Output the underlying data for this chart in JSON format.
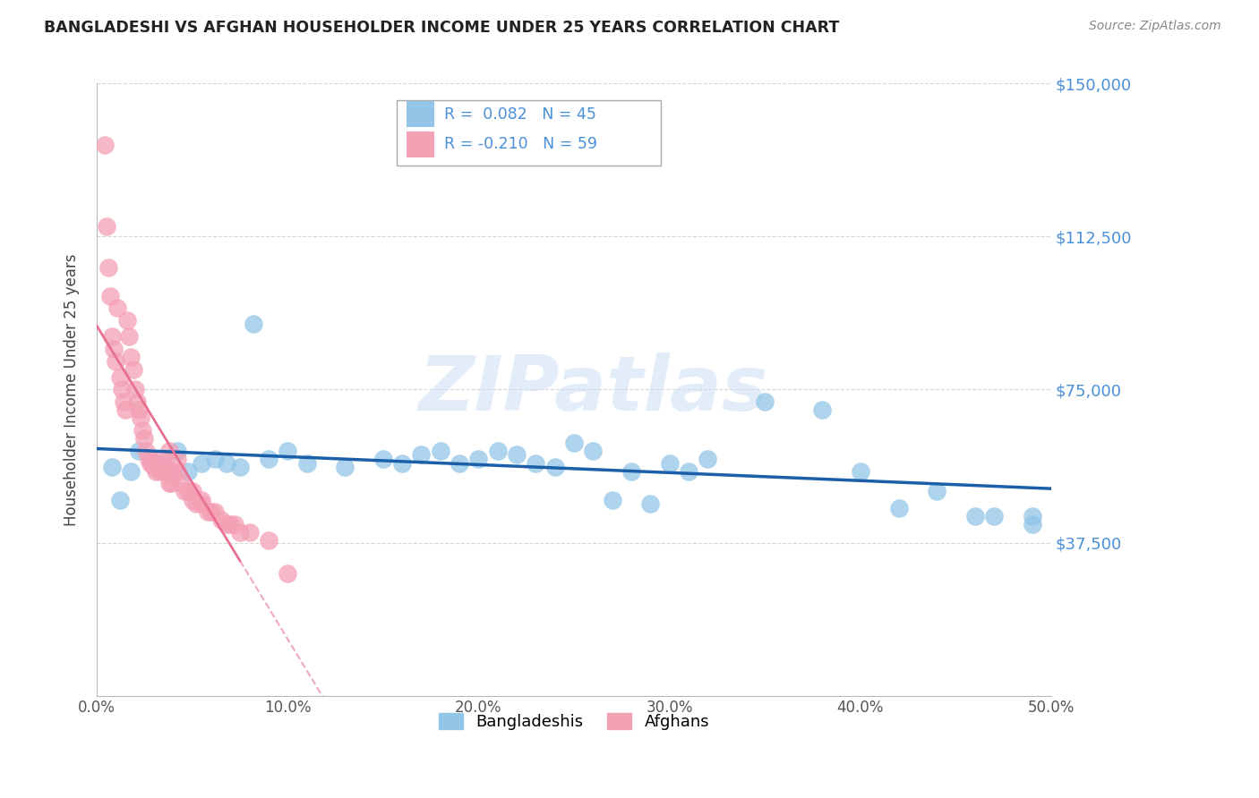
{
  "title": "BANGLADESHI VS AFGHAN HOUSEHOLDER INCOME UNDER 25 YEARS CORRELATION CHART",
  "source": "Source: ZipAtlas.com",
  "ylabel": "Householder Income Under 25 years",
  "watermark": "ZIPatlas",
  "legend_bangladeshi": "Bangladeshis",
  "legend_afghan": "Afghans",
  "R_bangladeshi": 0.082,
  "N_bangladeshi": 45,
  "R_afghan": -0.21,
  "N_afghan": 59,
  "xlim": [
    0.0,
    0.5
  ],
  "ylim": [
    0,
    150000
  ],
  "yticks": [
    0,
    37500,
    75000,
    112500,
    150000
  ],
  "ytick_labels": [
    "",
    "$37,500",
    "$75,000",
    "$112,500",
    "$150,000"
  ],
  "xtick_labels": [
    "0.0%",
    "10.0%",
    "20.0%",
    "30.0%",
    "40.0%",
    "50.0%"
  ],
  "xticks": [
    0.0,
    0.1,
    0.2,
    0.3,
    0.4,
    0.5
  ],
  "color_bangladeshi": "#92C5E8",
  "color_afghan": "#F4A0B5",
  "line_color_bangladeshi": "#1A5FA8",
  "line_color_afghan": "#E87090",
  "bangladeshi_x": [
    0.008,
    0.012,
    0.018,
    0.022,
    0.028,
    0.032,
    0.038,
    0.042,
    0.048,
    0.055,
    0.062,
    0.068,
    0.075,
    0.082,
    0.09,
    0.1,
    0.11,
    0.13,
    0.15,
    0.16,
    0.17,
    0.18,
    0.19,
    0.2,
    0.21,
    0.22,
    0.23,
    0.24,
    0.25,
    0.26,
    0.27,
    0.28,
    0.29,
    0.3,
    0.31,
    0.32,
    0.35,
    0.38,
    0.4,
    0.42,
    0.44,
    0.46,
    0.47,
    0.49,
    0.49
  ],
  "bangladeshi_y": [
    56000,
    48000,
    55000,
    60000,
    58000,
    57000,
    55000,
    60000,
    55000,
    57000,
    58000,
    57000,
    56000,
    91000,
    58000,
    60000,
    57000,
    56000,
    58000,
    57000,
    59000,
    60000,
    57000,
    58000,
    60000,
    59000,
    57000,
    56000,
    62000,
    60000,
    48000,
    55000,
    47000,
    57000,
    55000,
    58000,
    72000,
    70000,
    55000,
    46000,
    50000,
    44000,
    44000,
    42000,
    44000
  ],
  "afghan_x": [
    0.004,
    0.005,
    0.006,
    0.007,
    0.008,
    0.009,
    0.01,
    0.011,
    0.012,
    0.013,
    0.014,
    0.015,
    0.016,
    0.017,
    0.018,
    0.019,
    0.02,
    0.021,
    0.022,
    0.023,
    0.024,
    0.025,
    0.026,
    0.027,
    0.028,
    0.029,
    0.03,
    0.031,
    0.032,
    0.033,
    0.034,
    0.035,
    0.036,
    0.037,
    0.038,
    0.039,
    0.04,
    0.042,
    0.044,
    0.046,
    0.048,
    0.05,
    0.052,
    0.055,
    0.058,
    0.06,
    0.065,
    0.068,
    0.07,
    0.075,
    0.038,
    0.042,
    0.05,
    0.055,
    0.062,
    0.072,
    0.08,
    0.09,
    0.1
  ],
  "afghan_y": [
    135000,
    115000,
    105000,
    98000,
    88000,
    85000,
    82000,
    95000,
    78000,
    75000,
    72000,
    70000,
    92000,
    88000,
    83000,
    80000,
    75000,
    72000,
    70000,
    68000,
    65000,
    63000,
    60000,
    58000,
    57000,
    57000,
    56000,
    55000,
    57000,
    55000,
    58000,
    55000,
    56000,
    55000,
    52000,
    52000,
    55000,
    55000,
    52000,
    50000,
    50000,
    48000,
    47000,
    47000,
    45000,
    45000,
    43000,
    42000,
    42000,
    40000,
    60000,
    58000,
    50000,
    48000,
    45000,
    42000,
    40000,
    38000,
    30000
  ]
}
